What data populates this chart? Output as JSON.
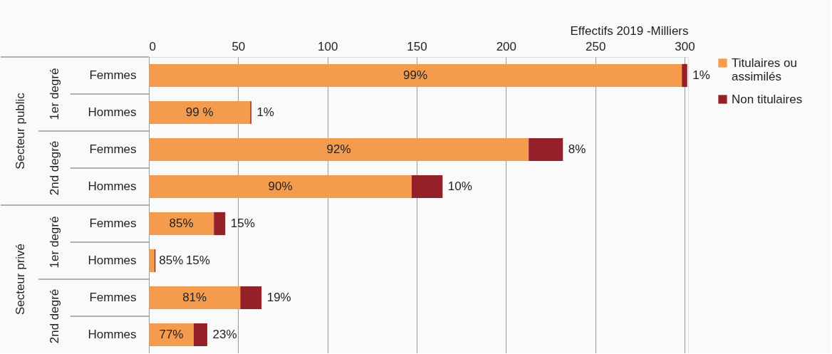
{
  "chart_data": {
    "type": "bar",
    "orientation": "horizontal",
    "stacked": true,
    "xlabel": "Effectifs 2019 -Milliers",
    "categories": [
      "Femmes",
      "Hommes",
      "Femmes",
      "Hommes",
      "Femmes",
      "Hommes",
      "Femmes",
      "Hommes"
    ],
    "series": [
      {
        "name": "Titulaires ou\nassimilés",
        "color": "#f59b4d",
        "values": [
          298.5,
          56.8,
          212.7,
          147.2,
          36.4,
          3.1,
          51.2,
          25.1
        ]
      },
      {
        "name": "Non titulaires",
        "color": "#96202a",
        "values": [
          3,
          0.6,
          19.2,
          17.3,
          6.4,
          0.6,
          11.9,
          7.6
        ]
      }
    ],
    "xlim": [
      0,
      302
    ],
    "xticks": [
      0,
      50,
      100,
      150,
      200,
      250,
      300
    ],
    "grid": "x",
    "legend": "right",
    "annotations": [
      "1er degré",
      "2nd degré",
      "1er degré",
      "2nd degré",
      "Secteur public",
      "Secteur privé",
      "99%",
      "1%",
      "99 %",
      "1%",
      "92%",
      "8%",
      "90%",
      "10%",
      "85%",
      "15%",
      "85%",
      "15%",
      "81%",
      "19%",
      "77%",
      "23%"
    ]
  }
}
